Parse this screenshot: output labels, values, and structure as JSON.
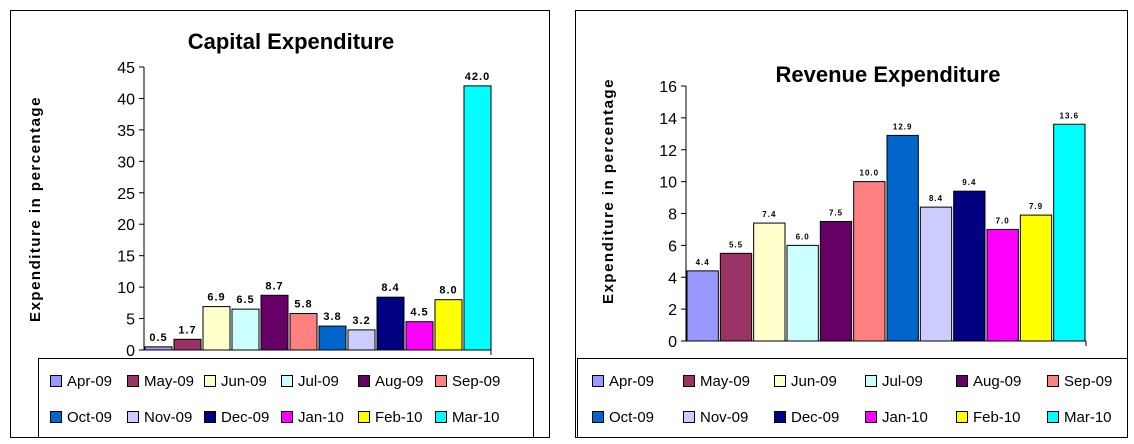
{
  "chart_data": [
    {
      "type": "bar",
      "title": "Capital Expenditure",
      "xlabel": "",
      "ylabel": "Expenditure in percentage",
      "ylim": [
        0,
        45
      ],
      "yticks": [
        0,
        5,
        10,
        15,
        20,
        25,
        30,
        35,
        40,
        45
      ],
      "grid": false,
      "legend_position": "bottom",
      "series": [
        {
          "name": "Apr-09",
          "values": [
            0.5
          ],
          "label": "0.5",
          "color": "#9999FF"
        },
        {
          "name": "May-09",
          "values": [
            1.7
          ],
          "label": "1.7",
          "color": "#993366"
        },
        {
          "name": "Jun-09",
          "values": [
            6.9
          ],
          "label": "6.9",
          "color": "#FFFFCC"
        },
        {
          "name": "Jul-09",
          "values": [
            6.5
          ],
          "label": "6.5",
          "color": "#CCFFFF"
        },
        {
          "name": "Aug-09",
          "values": [
            8.7
          ],
          "label": "8.7",
          "color": "#660066"
        },
        {
          "name": "Sep-09",
          "values": [
            5.8
          ],
          "label": "5.8",
          "color": "#FF8080"
        },
        {
          "name": "Oct-09",
          "values": [
            3.8
          ],
          "label": "3.8",
          "color": "#0066CC"
        },
        {
          "name": "Nov-09",
          "values": [
            3.2
          ],
          "label": "3.2",
          "color": "#CCCCFF"
        },
        {
          "name": "Dec-09",
          "values": [
            8.4
          ],
          "label": "8.4",
          "color": "#000080"
        },
        {
          "name": "Jan-10",
          "values": [
            4.5
          ],
          "label": "4.5",
          "color": "#FF00FF"
        },
        {
          "name": "Feb-10",
          "values": [
            8.0
          ],
          "label": "8.0",
          "color": "#FFFF00"
        },
        {
          "name": "Mar-10",
          "values": [
            42.0
          ],
          "label": "42.0",
          "color": "#00FFFF"
        }
      ]
    },
    {
      "type": "bar",
      "title": "Revenue Expenditure",
      "xlabel": "",
      "ylabel": "Expenditure in percentage",
      "ylim": [
        0,
        16
      ],
      "yticks": [
        0,
        2,
        4,
        6,
        8,
        10,
        12,
        14,
        16
      ],
      "grid": false,
      "legend_position": "bottom",
      "series": [
        {
          "name": "Apr-09",
          "values": [
            4.4
          ],
          "label": "4.4",
          "color": "#9999FF"
        },
        {
          "name": "May-09",
          "values": [
            5.5
          ],
          "label": "5.5",
          "color": "#993366"
        },
        {
          "name": "Jun-09",
          "values": [
            7.4
          ],
          "label": "7.4",
          "color": "#FFFFCC"
        },
        {
          "name": "Jul-09",
          "values": [
            6.0
          ],
          "label": "6.0",
          "color": "#CCFFFF"
        },
        {
          "name": "Aug-09",
          "values": [
            7.5
          ],
          "label": "7.5",
          "color": "#660066"
        },
        {
          "name": "Sep-09",
          "values": [
            10.0
          ],
          "label": "10.0",
          "color": "#FF8080"
        },
        {
          "name": "Oct-09",
          "values": [
            12.9
          ],
          "label": "12.9",
          "color": "#0066CC"
        },
        {
          "name": "Nov-09",
          "values": [
            8.4
          ],
          "label": "8.4",
          "color": "#CCCCFF"
        },
        {
          "name": "Dec-09",
          "values": [
            9.4
          ],
          "label": "9.4",
          "color": "#000080"
        },
        {
          "name": "Jan-10",
          "values": [
            7.0
          ],
          "label": "7.0",
          "color": "#FF00FF"
        },
        {
          "name": "Feb-10",
          "values": [
            7.9
          ],
          "label": "7.9",
          "color": "#FFFF00"
        },
        {
          "name": "Mar-10",
          "values": [
            13.6
          ],
          "label": "13.6",
          "color": "#00FFFF"
        }
      ]
    }
  ]
}
